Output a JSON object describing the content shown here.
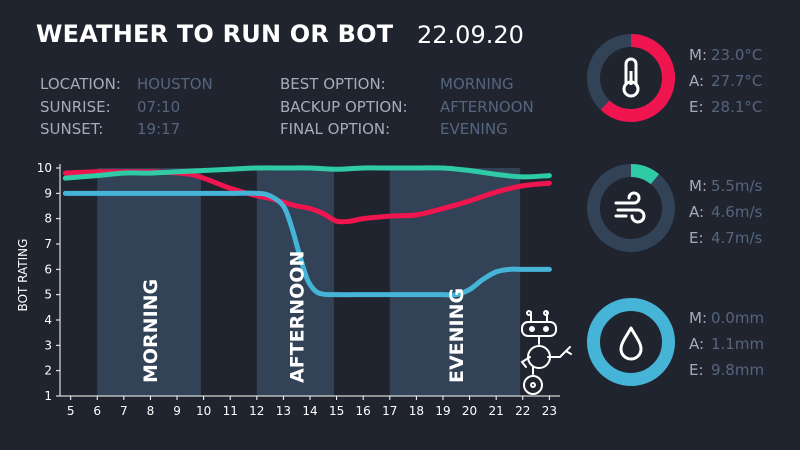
{
  "header": {
    "title": "WEATHER TO RUN OR BOT",
    "date": "22.09.20"
  },
  "info_left": [
    {
      "label": "LOCATION:",
      "value": "HOUSTON"
    },
    {
      "label": "SUNRISE:",
      "value": "07:10"
    },
    {
      "label": "SUNSET:",
      "value": "19:17"
    }
  ],
  "info_right": [
    {
      "label": "BEST OPTION:",
      "value": "MORNING"
    },
    {
      "label": "BACKUP OPTION:",
      "value": "AFTERNOON"
    },
    {
      "label": "FINAL OPTION:",
      "value": "EVENING"
    }
  ],
  "colors": {
    "temperature": "#f0154e",
    "wind": "#2fcaa6",
    "rain": "#45b4d6",
    "band": "#324257",
    "track": "#324257",
    "background": "#20242e"
  },
  "chart_data": {
    "type": "line",
    "ylabel": "BOT RATING",
    "x_ticks": [
      "5",
      "6",
      "7",
      "8",
      "9",
      "10",
      "11",
      "12",
      "13",
      "14",
      "15",
      "16",
      "17",
      "18",
      "19",
      "20",
      "21",
      "22",
      "23"
    ],
    "y_ticks": [
      "1",
      "2",
      "3",
      "4",
      "5",
      "6",
      "7",
      "8",
      "9",
      "10"
    ],
    "xlim": [
      4.6,
      23.4
    ],
    "ylim": [
      1,
      10
    ],
    "bands": [
      {
        "label": "MORNING",
        "start": 6,
        "end": 9.9
      },
      {
        "label": "AFTERNOON",
        "start": 12,
        "end": 14.9
      },
      {
        "label": "EVENING",
        "start": 17,
        "end": 21.9
      }
    ],
    "series": [
      {
        "color": "#f0154e",
        "x": [
          4.8,
          6,
          7,
          8,
          9,
          9.5,
          10,
          10.5,
          11,
          12,
          12.5,
          13,
          13.5,
          14,
          14.5,
          15,
          15.5,
          16,
          17,
          18,
          19,
          20,
          21,
          22,
          23
        ],
        "y": [
          9.8,
          9.85,
          9.85,
          9.85,
          9.8,
          9.75,
          9.6,
          9.4,
          9.2,
          8.9,
          8.8,
          8.65,
          8.5,
          8.4,
          8.2,
          7.9,
          7.9,
          8.0,
          8.1,
          8.15,
          8.4,
          8.7,
          9.05,
          9.3,
          9.4
        ]
      },
      {
        "color": "#2fcaa6",
        "x": [
          4.8,
          6,
          7,
          8,
          9,
          10,
          11,
          12,
          13,
          14,
          15,
          16,
          17,
          18,
          19,
          20,
          21,
          22,
          23
        ],
        "y": [
          9.6,
          9.7,
          9.8,
          9.8,
          9.85,
          9.9,
          9.95,
          10,
          10,
          10,
          9.95,
          10,
          10,
          10,
          10,
          9.9,
          9.75,
          9.65,
          9.7
        ]
      },
      {
        "color": "#45b4d6",
        "x": [
          4.8,
          6,
          7,
          8,
          9,
          10,
          11,
          12,
          12.5,
          13,
          13.3,
          13.6,
          13.9,
          14.2,
          14.5,
          15,
          16,
          17,
          18,
          19,
          19.5,
          20,
          20.5,
          21,
          21.5,
          22,
          23
        ],
        "y": [
          9,
          9,
          9,
          9,
          9,
          9,
          9,
          9,
          8.9,
          8.5,
          7.7,
          6.6,
          5.6,
          5.15,
          5.02,
          5,
          5,
          5,
          5,
          5,
          5,
          5.2,
          5.6,
          5.9,
          6,
          6,
          6
        ]
      }
    ]
  },
  "stats": {
    "temperature": {
      "icon": "thermometer-icon",
      "fraction": 0.62,
      "rows": [
        {
          "k": "M:",
          "v": "23.0°C"
        },
        {
          "k": "A:",
          "v": "27.7°C"
        },
        {
          "k": "E:",
          "v": "28.1°C"
        }
      ]
    },
    "wind": {
      "icon": "wind-icon",
      "fraction": 0.11,
      "rows": [
        {
          "k": "M:",
          "v": "5.5m/s"
        },
        {
          "k": "A:",
          "v": "4.6m/s"
        },
        {
          "k": "E:",
          "v": "4.7m/s"
        }
      ]
    },
    "rain": {
      "icon": "raindrop-icon",
      "fraction": 1.0,
      "rows": [
        {
          "k": "M:",
          "v": "0.0mm"
        },
        {
          "k": "A:",
          "v": "1.1mm"
        },
        {
          "k": "E:",
          "v": "9.8mm"
        }
      ]
    }
  }
}
